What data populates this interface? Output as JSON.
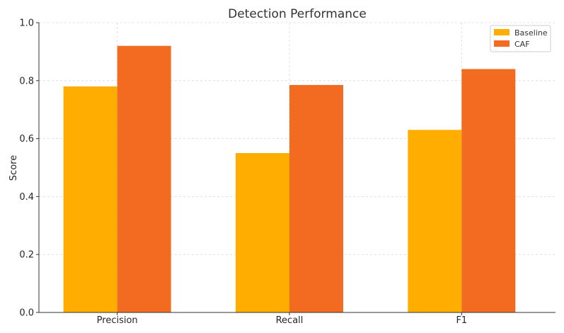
{
  "chart_data": {
    "type": "bar",
    "title": "Detection Performance",
    "xlabel": "",
    "ylabel": "Score",
    "categories": [
      "Precision",
      "Recall",
      "F1"
    ],
    "series": [
      {
        "name": "Baseline",
        "values": [
          0.78,
          0.55,
          0.63
        ],
        "color": "#FFAE00"
      },
      {
        "name": "CAF",
        "values": [
          0.92,
          0.785,
          0.84
        ],
        "color": "#F26B21"
      }
    ],
    "ylim": [
      0,
      1.0
    ],
    "yticks": [
      "0.0",
      "0.2",
      "0.4",
      "0.6",
      "0.8",
      "1.0"
    ],
    "grid": true,
    "legend_position": "top-right"
  }
}
